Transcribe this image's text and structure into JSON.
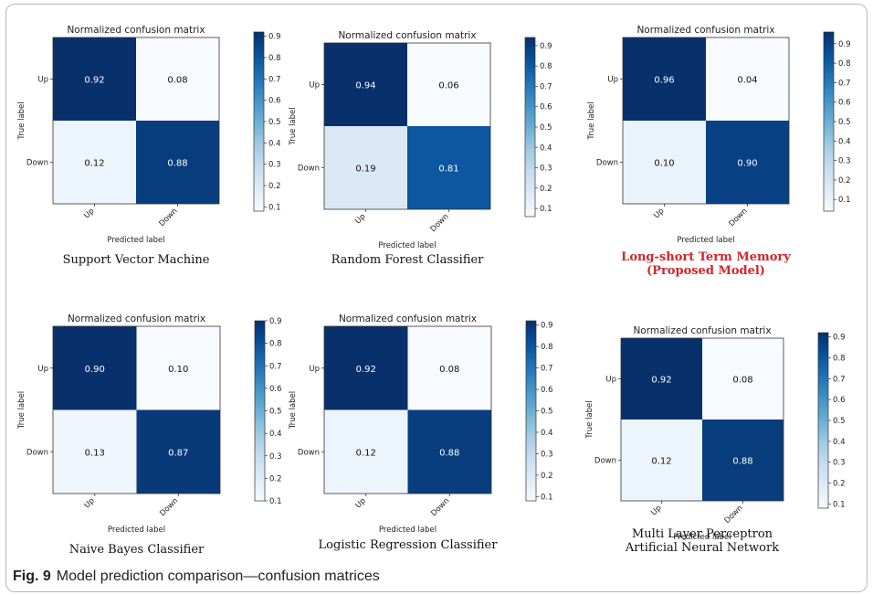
{
  "caption": {
    "number": "Fig. 9",
    "text": "Model prediction comparison—confusion matrices"
  },
  "colors": {
    "low": "#f7fbff",
    "high": "#08306b",
    "highlight_label": "#d0262b"
  },
  "chart_data": [
    {
      "type": "heatmap",
      "title": "Normalized confusion matrix",
      "xlabel": "Predicted label",
      "ylabel": "True label",
      "x_categories": [
        "Up",
        "Down"
      ],
      "y_categories": [
        "Up",
        "Down"
      ],
      "values": [
        [
          0.92,
          0.08
        ],
        [
          0.12,
          0.88
        ]
      ],
      "colorbar": {
        "min": 0.08,
        "max": 0.92,
        "ticks": [
          0.1,
          0.2,
          0.3,
          0.4,
          0.5,
          0.6,
          0.7,
          0.8,
          0.9
        ]
      },
      "model_name": [
        "Support Vector Machine"
      ],
      "highlight": false
    },
    {
      "type": "heatmap",
      "title": "Normalized confusion matrix",
      "xlabel": "Predicted label",
      "ylabel": "True label",
      "x_categories": [
        "Up",
        "Down"
      ],
      "y_categories": [
        "Up",
        "Down"
      ],
      "values": [
        [
          0.94,
          0.06
        ],
        [
          0.19,
          0.81
        ]
      ],
      "colorbar": {
        "min": 0.06,
        "max": 0.94,
        "ticks": [
          0.1,
          0.2,
          0.3,
          0.4,
          0.5,
          0.6,
          0.7,
          0.8,
          0.9
        ]
      },
      "model_name": [
        "Random Forest Classifier"
      ],
      "highlight": false
    },
    {
      "type": "heatmap",
      "title": "Normalized confusion matrix",
      "xlabel": "Predicted label",
      "ylabel": "True label",
      "x_categories": [
        "Up",
        "Down"
      ],
      "y_categories": [
        "Up",
        "Down"
      ],
      "values": [
        [
          0.96,
          0.04
        ],
        [
          0.1,
          0.9
        ]
      ],
      "colorbar": {
        "min": 0.04,
        "max": 0.96,
        "ticks": [
          0.1,
          0.2,
          0.3,
          0.4,
          0.5,
          0.6,
          0.7,
          0.8,
          0.9
        ]
      },
      "model_name": [
        "Long-short Term Memory",
        "(Proposed Model)"
      ],
      "highlight": true
    },
    {
      "type": "heatmap",
      "title": "Normalized confusion matrix",
      "xlabel": "Predicted label",
      "ylabel": "True label",
      "x_categories": [
        "Up",
        "Down"
      ],
      "y_categories": [
        "Up",
        "Down"
      ],
      "values": [
        [
          0.9,
          0.1
        ],
        [
          0.13,
          0.87
        ]
      ],
      "colorbar": {
        "min": 0.1,
        "max": 0.9,
        "ticks": [
          0.1,
          0.2,
          0.3,
          0.4,
          0.5,
          0.6,
          0.7,
          0.8,
          0.9
        ]
      },
      "model_name": [
        "Naive Bayes Classifier"
      ],
      "highlight": false
    },
    {
      "type": "heatmap",
      "title": "Normalized confusion matrix",
      "xlabel": "Predicted label",
      "ylabel": "True label",
      "x_categories": [
        "Up",
        "Down"
      ],
      "y_categories": [
        "Up",
        "Down"
      ],
      "values": [
        [
          0.92,
          0.08
        ],
        [
          0.12,
          0.88
        ]
      ],
      "colorbar": {
        "min": 0.08,
        "max": 0.92,
        "ticks": [
          0.1,
          0.2,
          0.3,
          0.4,
          0.5,
          0.6,
          0.7,
          0.8,
          0.9
        ]
      },
      "model_name": [
        "Logistic Regression Classifier"
      ],
      "highlight": false
    },
    {
      "type": "heatmap",
      "title": "Normalized confusion matrix",
      "xlabel": "Predicted label",
      "ylabel": "True label",
      "x_categories": [
        "Up",
        "Down"
      ],
      "y_categories": [
        "Up",
        "Down"
      ],
      "values": [
        [
          0.92,
          0.08
        ],
        [
          0.12,
          0.88
        ]
      ],
      "colorbar": {
        "min": 0.08,
        "max": 0.92,
        "ticks": [
          0.1,
          0.2,
          0.3,
          0.4,
          0.5,
          0.6,
          0.7,
          0.8,
          0.9
        ]
      },
      "model_name": [
        "Multi Layer Perceptron",
        "Artificial Neural Network"
      ],
      "highlight": false
    }
  ]
}
